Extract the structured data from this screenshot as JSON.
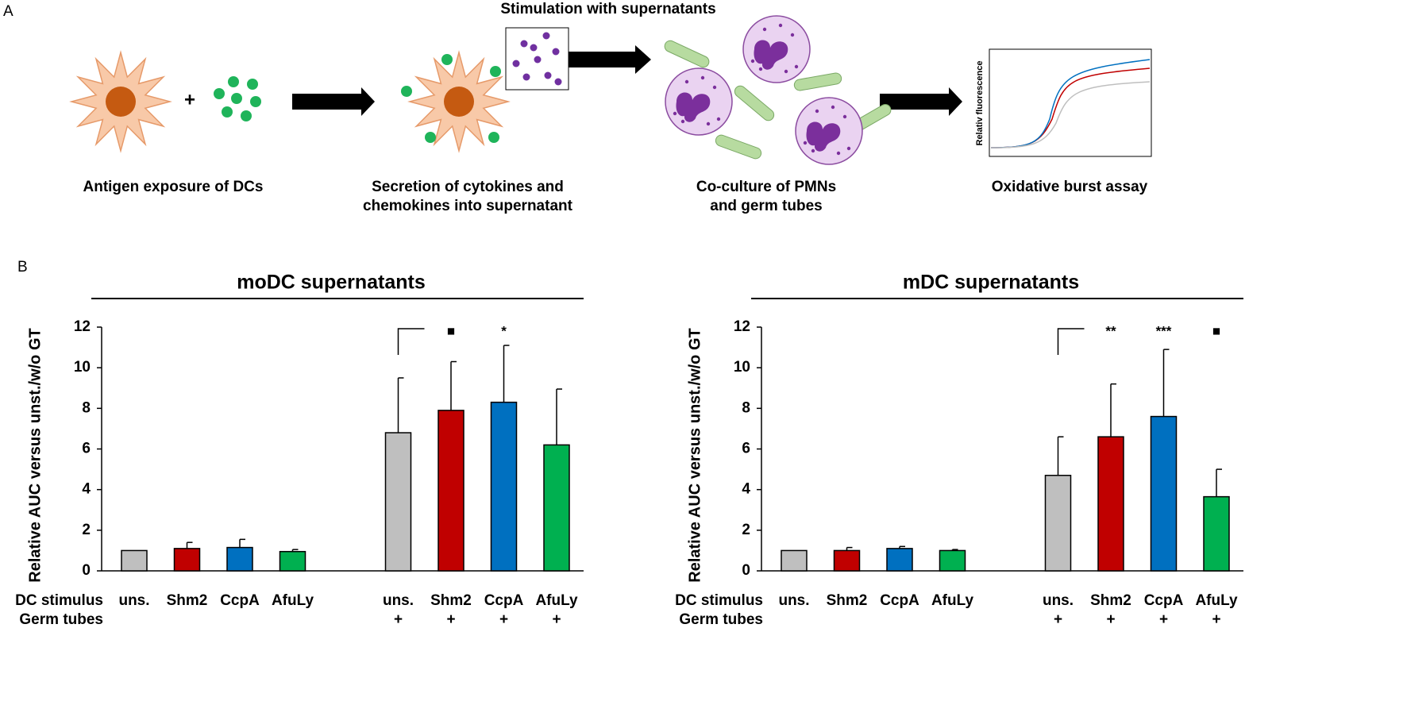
{
  "panel_labels": {
    "a": "A",
    "b": "B"
  },
  "diagram": {
    "stimulation": "Stimulation with supernatants",
    "plus": "+",
    "inset_axis": "Relativ fluorescence",
    "steps": [
      [
        "Antigen exposure of DCs"
      ],
      [
        "Secretion of cytokines and",
        "chemokines into supernatant"
      ],
      [
        "Co-culture of PMNs",
        "and germ tubes"
      ],
      [
        "Oxidative burst assay"
      ]
    ]
  },
  "chart_data": [
    {
      "type": "bar",
      "title": "moDC supernatants",
      "y_label": "Relative AUC versus unst./w/o GT",
      "row_labels": [
        "DC stimulus",
        "Germ tubes"
      ],
      "categories": [
        "uns.",
        "Shm2",
        "CcpA",
        "AfuLy",
        "uns.",
        "Shm2",
        "CcpA",
        "AfuLy"
      ],
      "germ_tubes": [
        null,
        null,
        null,
        null,
        "+",
        "+",
        "+",
        "+"
      ],
      "values": [
        1.0,
        1.1,
        1.15,
        0.95,
        6.8,
        7.9,
        8.3,
        6.2
      ],
      "errors": [
        0,
        0.3,
        0.4,
        0.1,
        2.7,
        2.4,
        2.8,
        2.75
      ],
      "colors": [
        "#bfbfbf",
        "#c00000",
        "#0070c0",
        "#00b050",
        "#bfbfbf",
        "#c00000",
        "#0070c0",
        "#00b050"
      ],
      "significance": [
        null,
        null,
        null,
        null,
        null,
        "■",
        "*",
        null
      ],
      "ylim": [
        0,
        12
      ],
      "yticks": [
        0,
        2,
        4,
        6,
        8,
        10,
        12
      ]
    },
    {
      "type": "bar",
      "title": "mDC supernatants",
      "y_label": "Relative AUC versus unst./w/o GT",
      "row_labels": [
        "DC stimulus",
        "Germ tubes"
      ],
      "categories": [
        "uns.",
        "Shm2",
        "CcpA",
        "AfuLy",
        "uns.",
        "Shm2",
        "CcpA",
        "AfuLy"
      ],
      "germ_tubes": [
        null,
        null,
        null,
        null,
        "+",
        "+",
        "+",
        "+"
      ],
      "values": [
        1.0,
        1.0,
        1.1,
        1.0,
        4.7,
        6.6,
        7.6,
        3.65
      ],
      "errors": [
        0,
        0.15,
        0.1,
        0.05,
        1.9,
        2.6,
        3.3,
        1.35
      ],
      "colors": [
        "#bfbfbf",
        "#c00000",
        "#0070c0",
        "#00b050",
        "#bfbfbf",
        "#c00000",
        "#0070c0",
        "#00b050"
      ],
      "significance": [
        null,
        null,
        null,
        null,
        null,
        "**",
        "***",
        "■"
      ],
      "ylim": [
        0,
        12
      ],
      "yticks": [
        0,
        2,
        4,
        6,
        8,
        10,
        12
      ]
    }
  ]
}
